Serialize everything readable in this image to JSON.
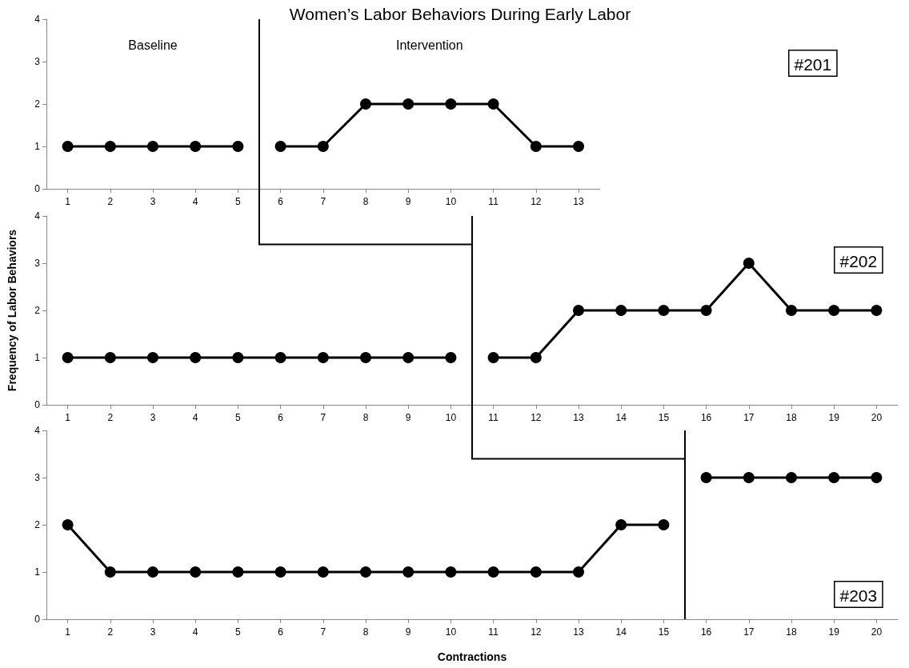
{
  "chart_data": [
    {
      "type": "line",
      "title": "Women’s Labor Behaviors During Early Labor",
      "annotations": [
        "Baseline",
        "Intervention",
        "#201"
      ],
      "xlim": [
        0.5,
        13.5
      ],
      "xticks": [
        1,
        2,
        3,
        4,
        5,
        6,
        7,
        8,
        9,
        10,
        11,
        12,
        13
      ],
      "ylim": [
        0,
        4
      ],
      "yticks": [
        0,
        1,
        2,
        3,
        4
      ],
      "marker": "circle",
      "line_style": "solid",
      "series": [
        {
          "color": "#000000",
          "x": [
            1,
            2,
            3,
            4,
            5
          ],
          "values": [
            1,
            1,
            1,
            1,
            1
          ]
        },
        {
          "color": "#000000",
          "x": [
            6,
            7,
            8,
            9,
            10,
            11,
            12,
            13
          ],
          "values": [
            1,
            1,
            2,
            2,
            2,
            2,
            1,
            1
          ]
        }
      ],
      "ref_lines": [
        {
          "axis": "x",
          "value": 5.5,
          "color": "#000000"
        }
      ]
    },
    {
      "type": "line",
      "ylabel": "Frequency of Labor Behaviors",
      "annotations": [
        "#202"
      ],
      "xlim": [
        0.5,
        20.5
      ],
      "xticks": [
        1,
        2,
        3,
        4,
        5,
        6,
        7,
        8,
        9,
        10,
        11,
        12,
        13,
        14,
        15,
        16,
        17,
        18,
        19,
        20
      ],
      "ylim": [
        0,
        4
      ],
      "yticks": [
        0,
        1,
        2,
        3,
        4
      ],
      "marker": "circle",
      "line_style": "solid",
      "series": [
        {
          "color": "#000000",
          "x": [
            1,
            2,
            3,
            4,
            5,
            6,
            7,
            8,
            9,
            10
          ],
          "values": [
            1,
            1,
            1,
            1,
            1,
            1,
            1,
            1,
            1,
            1
          ]
        },
        {
          "color": "#000000",
          "x": [
            11,
            12,
            13,
            14,
            15,
            16,
            17,
            18,
            19,
            20
          ],
          "values": [
            1,
            1,
            2,
            2,
            2,
            2,
            3,
            2,
            2,
            2
          ]
        }
      ],
      "ref_lines": [
        {
          "axis": "x",
          "value": 10.5,
          "color": "#000000"
        }
      ]
    },
    {
      "type": "line",
      "xlabel": "Contractions",
      "annotations": [
        "#203"
      ],
      "xlim": [
        0.5,
        20.5
      ],
      "xticks": [
        1,
        2,
        3,
        4,
        5,
        6,
        7,
        8,
        9,
        10,
        11,
        12,
        13,
        14,
        15,
        16,
        17,
        18,
        19,
        20
      ],
      "ylim": [
        0,
        4
      ],
      "yticks": [
        0,
        1,
        2,
        3,
        4
      ],
      "marker": "circle",
      "line_style": "solid",
      "series": [
        {
          "color": "#000000",
          "x": [
            1,
            2,
            3,
            4,
            5,
            6,
            7,
            8,
            9,
            10,
            11,
            12,
            13,
            14,
            15
          ],
          "values": [
            2,
            1,
            1,
            1,
            1,
            1,
            1,
            1,
            1,
            1,
            1,
            1,
            1,
            2,
            2
          ]
        },
        {
          "color": "#000000",
          "x": [
            16,
            17,
            18,
            19,
            20
          ],
          "values": [
            3,
            3,
            3,
            3,
            3
          ]
        }
      ],
      "ref_lines": [
        {
          "axis": "x",
          "value": 15.5,
          "color": "#000000"
        }
      ]
    }
  ]
}
